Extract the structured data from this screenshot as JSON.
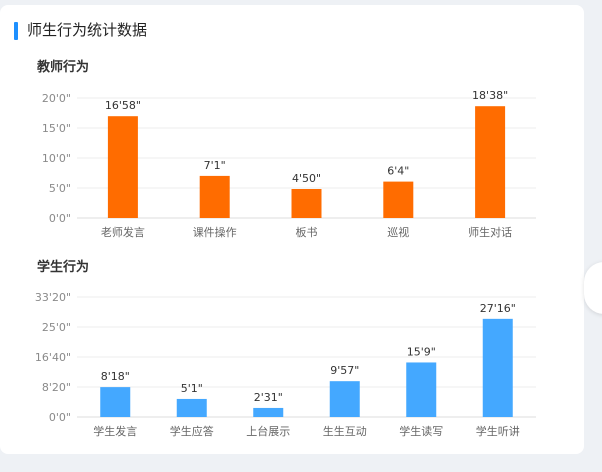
{
  "page": {
    "title": "师生行为统计数据"
  },
  "chart_data": [
    {
      "type": "bar",
      "title": "教师行为",
      "categories": [
        "老师发言",
        "课件操作",
        "板书",
        "巡视",
        "师生对话"
      ],
      "values": [
        1018,
        421,
        290,
        364,
        1118
      ],
      "value_labels": [
        "16'58\"",
        "7'1\"",
        "4'50\"",
        "6'4\"",
        "18'38\""
      ],
      "ylim": [
        0,
        1200
      ],
      "yticks": [
        0,
        300,
        600,
        900,
        1200
      ],
      "ytick_labels": [
        "0'0\"",
        "5'0\"",
        "10'0\"",
        "15'0\"",
        "20'0\""
      ],
      "color": "#ff6c00",
      "grid": true
    },
    {
      "type": "bar",
      "title": "学生行为",
      "categories": [
        "学生发言",
        "学生应答",
        "上台展示",
        "生生互动",
        "学生读写",
        "学生听讲"
      ],
      "values": [
        498,
        301,
        151,
        597,
        909,
        1636
      ],
      "value_labels": [
        "8'18\"",
        "5'1\"",
        "2'31\"",
        "9'57\"",
        "15'9\"",
        "27'16\""
      ],
      "ylim": [
        0,
        2000
      ],
      "yticks": [
        0,
        500,
        1000,
        1500,
        2000
      ],
      "ytick_labels": [
        "0'0\"",
        "8'20\"",
        "16'40\"",
        "25'0\"",
        "33'20\""
      ],
      "color": "#44a8ff",
      "grid": true
    }
  ]
}
